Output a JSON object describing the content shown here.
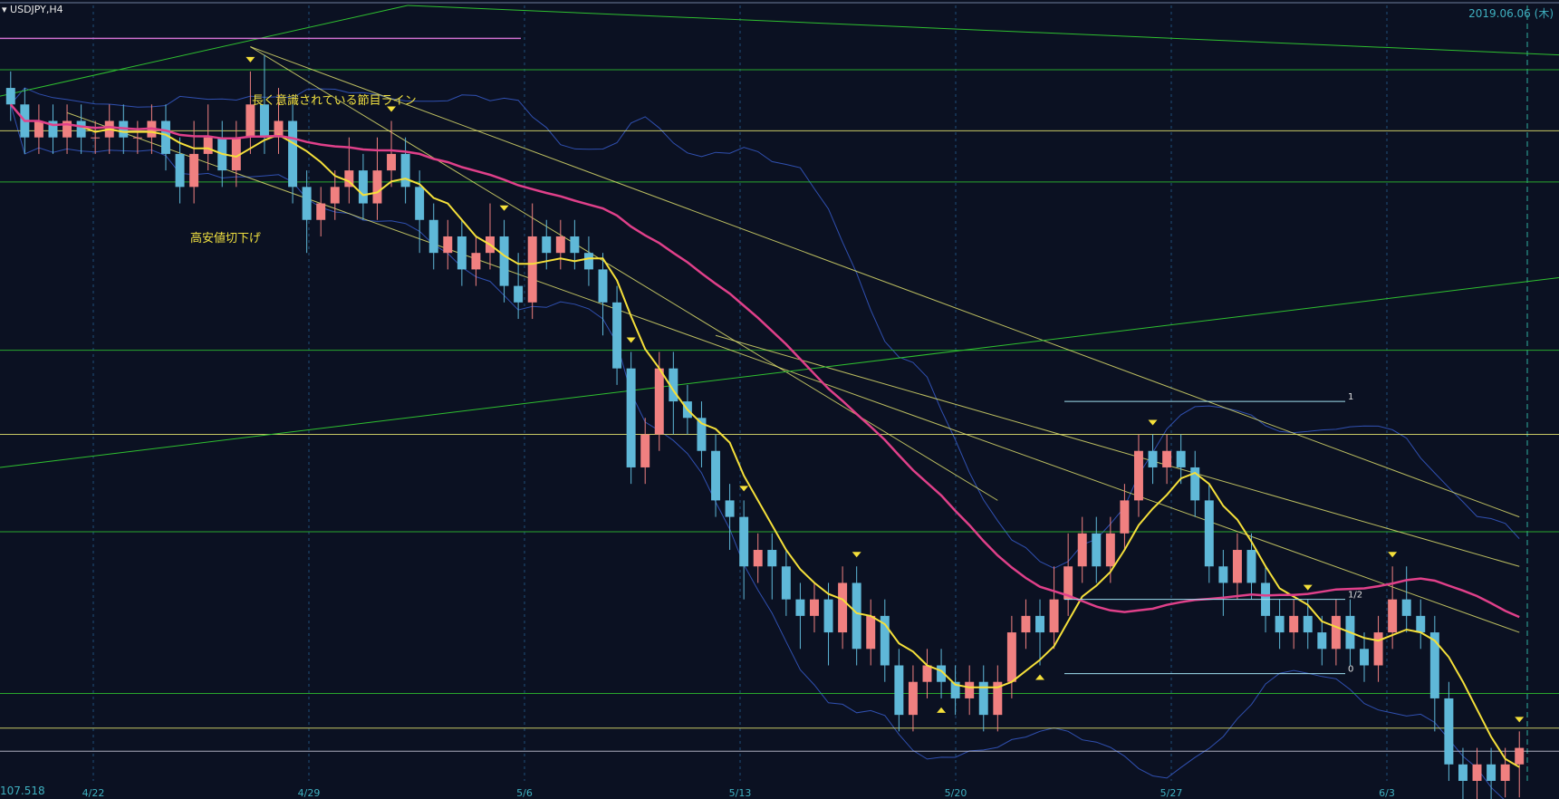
{
  "header": {
    "symbol": "USDJPY,H4",
    "date": "2019.06.06 (木)"
  },
  "price_readout": "107.518",
  "annotations": {
    "long_term_line": "長く意識されている節目ライン",
    "lower_highs_lows": "高安値切下げ"
  },
  "fib_labels": [
    "1",
    "1/2",
    "0"
  ],
  "colors": {
    "background": "#0b1122",
    "bull": "#f08080",
    "bear": "#5fb8d8",
    "ma_fast": "#f5e03a",
    "ma_slow": "#e0408a",
    "horizontal_green": "#2fc030",
    "horizontal_yellow": "#e8e870",
    "bollinger": "#3050b0",
    "grid": "#1f4f7a"
  },
  "chart_data": {
    "type": "candlestick",
    "timeframe": "H4",
    "x_ticks": [
      "4/22",
      "4/29",
      "5/6",
      "5/13",
      "5/20",
      "5/27",
      "6/3"
    ],
    "ylim": [
      107.3,
      112.0
    ],
    "horizontal_levels": [
      111.61,
      111.24,
      110.93,
      109.91,
      109.4,
      108.81,
      107.83,
      107.62,
      107.48
    ],
    "key_level_price": 107.518,
    "candles": [
      [
        111.5,
        111.4,
        111.6,
        111.3
      ],
      [
        111.4,
        111.2,
        111.5,
        111.1
      ],
      [
        111.2,
        111.3,
        111.4,
        111.1
      ],
      [
        111.3,
        111.2,
        111.4,
        111.1
      ],
      [
        111.2,
        111.3,
        111.4,
        111.1
      ],
      [
        111.3,
        111.2,
        111.4,
        111.1
      ],
      [
        111.2,
        111.2,
        111.3,
        111.1
      ],
      [
        111.2,
        111.3,
        111.4,
        111.1
      ],
      [
        111.3,
        111.2,
        111.4,
        111.1
      ],
      [
        111.2,
        111.2,
        111.3,
        111.1
      ],
      [
        111.2,
        111.3,
        111.4,
        111.1
      ],
      [
        111.3,
        111.1,
        111.4,
        111.0
      ],
      [
        111.1,
        110.9,
        111.2,
        110.8
      ],
      [
        110.9,
        111.1,
        111.3,
        110.8
      ],
      [
        111.1,
        111.2,
        111.4,
        111.0
      ],
      [
        111.2,
        111.0,
        111.3,
        110.9
      ],
      [
        111.0,
        111.2,
        111.3,
        110.9
      ],
      [
        111.2,
        111.4,
        111.6,
        111.1
      ],
      [
        111.4,
        111.2,
        111.7,
        111.1
      ],
      [
        111.2,
        111.3,
        111.5,
        111.1
      ],
      [
        111.3,
        110.9,
        111.4,
        110.8
      ],
      [
        110.9,
        110.7,
        111.0,
        110.5
      ],
      [
        110.7,
        110.8,
        110.9,
        110.6
      ],
      [
        110.8,
        110.9,
        111.0,
        110.7
      ],
      [
        110.9,
        111.0,
        111.2,
        110.8
      ],
      [
        111.0,
        110.8,
        111.1,
        110.7
      ],
      [
        110.8,
        111.0,
        111.2,
        110.7
      ],
      [
        111.0,
        111.1,
        111.3,
        110.9
      ],
      [
        111.1,
        110.9,
        111.2,
        110.8
      ],
      [
        110.9,
        110.7,
        111.0,
        110.5
      ],
      [
        110.7,
        110.5,
        110.8,
        110.4
      ],
      [
        110.5,
        110.6,
        110.7,
        110.4
      ],
      [
        110.6,
        110.4,
        110.7,
        110.3
      ],
      [
        110.4,
        110.5,
        110.6,
        110.3
      ],
      [
        110.5,
        110.6,
        110.8,
        110.4
      ],
      [
        110.6,
        110.3,
        110.7,
        110.2
      ],
      [
        110.3,
        110.2,
        110.5,
        110.1
      ],
      [
        110.2,
        110.6,
        110.8,
        110.1
      ],
      [
        110.6,
        110.5,
        110.7,
        110.4
      ],
      [
        110.5,
        110.6,
        110.7,
        110.4
      ],
      [
        110.6,
        110.5,
        110.7,
        110.4
      ],
      [
        110.5,
        110.4,
        110.6,
        110.3
      ],
      [
        110.4,
        110.2,
        110.5,
        110.0
      ],
      [
        110.2,
        109.8,
        110.3,
        109.7
      ],
      [
        109.8,
        109.2,
        109.9,
        109.1
      ],
      [
        109.2,
        109.4,
        109.5,
        109.1
      ],
      [
        109.4,
        109.8,
        109.9,
        109.3
      ],
      [
        109.8,
        109.6,
        109.9,
        109.4
      ],
      [
        109.6,
        109.5,
        109.7,
        109.4
      ],
      [
        109.5,
        109.3,
        109.6,
        109.2
      ],
      [
        109.3,
        109.0,
        109.4,
        108.9
      ],
      [
        109.0,
        108.9,
        109.1,
        108.7
      ],
      [
        108.9,
        108.6,
        109.0,
        108.4
      ],
      [
        108.6,
        108.7,
        108.8,
        108.5
      ],
      [
        108.7,
        108.6,
        108.8,
        108.4
      ],
      [
        108.6,
        108.4,
        108.7,
        108.3
      ],
      [
        108.4,
        108.3,
        108.5,
        108.1
      ],
      [
        108.3,
        108.4,
        108.5,
        108.2
      ],
      [
        108.4,
        108.2,
        108.5,
        108.0
      ],
      [
        108.2,
        108.5,
        108.6,
        108.1
      ],
      [
        108.5,
        108.1,
        108.6,
        108.0
      ],
      [
        108.1,
        108.3,
        108.4,
        108.0
      ],
      [
        108.3,
        108.0,
        108.4,
        107.9
      ],
      [
        108.0,
        107.7,
        108.1,
        107.6
      ],
      [
        107.7,
        107.9,
        108.0,
        107.6
      ],
      [
        107.9,
        108.0,
        108.1,
        107.8
      ],
      [
        108.0,
        107.9,
        108.1,
        107.8
      ],
      [
        107.9,
        107.8,
        108.0,
        107.7
      ],
      [
        107.8,
        107.9,
        108.0,
        107.7
      ],
      [
        107.9,
        107.7,
        108.0,
        107.6
      ],
      [
        107.7,
        107.9,
        108.0,
        107.6
      ],
      [
        107.9,
        108.2,
        108.3,
        107.8
      ],
      [
        108.2,
        108.3,
        108.4,
        108.1
      ],
      [
        108.3,
        108.2,
        108.4,
        108.0
      ],
      [
        108.2,
        108.4,
        108.6,
        108.1
      ],
      [
        108.4,
        108.6,
        108.8,
        108.3
      ],
      [
        108.6,
        108.8,
        108.9,
        108.5
      ],
      [
        108.8,
        108.6,
        108.9,
        108.5
      ],
      [
        108.6,
        108.8,
        108.9,
        108.5
      ],
      [
        108.8,
        109.0,
        109.1,
        108.7
      ],
      [
        109.0,
        109.3,
        109.4,
        108.9
      ],
      [
        109.3,
        109.2,
        109.4,
        109.1
      ],
      [
        109.2,
        109.3,
        109.4,
        109.1
      ],
      [
        109.3,
        109.2,
        109.4,
        109.1
      ],
      [
        109.2,
        109.0,
        109.3,
        108.9
      ],
      [
        109.0,
        108.6,
        109.1,
        108.5
      ],
      [
        108.6,
        108.5,
        108.7,
        108.3
      ],
      [
        108.5,
        108.7,
        108.8,
        108.4
      ],
      [
        108.7,
        108.5,
        108.8,
        108.4
      ],
      [
        108.5,
        108.3,
        108.6,
        108.2
      ],
      [
        108.3,
        108.2,
        108.4,
        108.1
      ],
      [
        108.2,
        108.3,
        108.4,
        108.1
      ],
      [
        108.3,
        108.2,
        108.4,
        108.1
      ],
      [
        108.2,
        108.1,
        108.3,
        108.0
      ],
      [
        108.1,
        108.3,
        108.4,
        108.0
      ],
      [
        108.3,
        108.1,
        108.4,
        108.0
      ],
      [
        108.1,
        108.0,
        108.2,
        107.9
      ],
      [
        108.0,
        108.2,
        108.3,
        107.9
      ],
      [
        108.2,
        108.4,
        108.6,
        108.1
      ],
      [
        108.4,
        108.3,
        108.6,
        108.2
      ],
      [
        108.3,
        108.2,
        108.4,
        108.1
      ],
      [
        108.2,
        107.8,
        108.3,
        107.6
      ],
      [
        107.8,
        107.4,
        107.9,
        107.3
      ],
      [
        107.4,
        107.3,
        107.5,
        107.1
      ],
      [
        107.3,
        107.4,
        107.5,
        107.1
      ],
      [
        107.4,
        107.3,
        107.5,
        107.1
      ],
      [
        107.3,
        107.4,
        107.5,
        107.2
      ],
      [
        107.4,
        107.5,
        107.6,
        107.2
      ]
    ]
  }
}
